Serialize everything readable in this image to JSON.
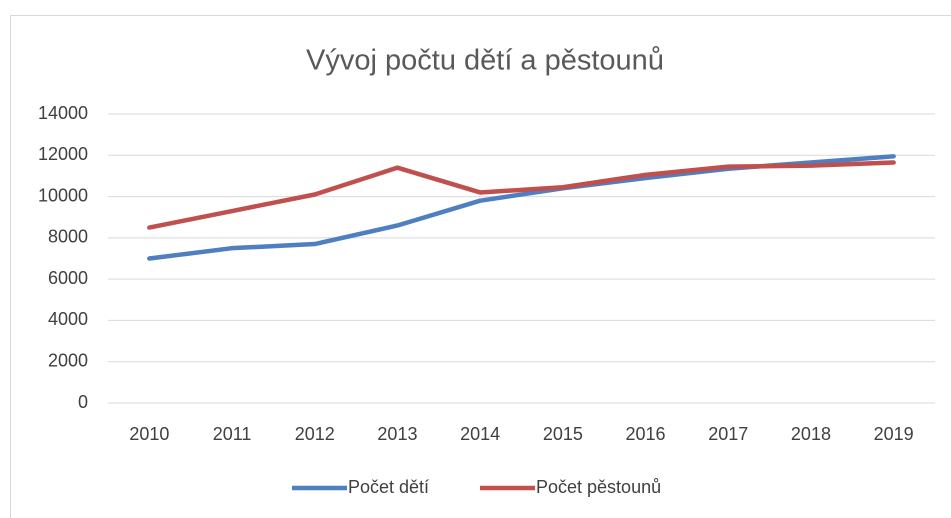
{
  "chart_data": {
    "type": "line",
    "title": "Vývoj počtu dětí a pěstounů",
    "x": [
      "2010",
      "2011",
      "2012",
      "2013",
      "2014",
      "2015",
      "2016",
      "2017",
      "2018",
      "2019"
    ],
    "series": [
      {
        "name": "Počet dětí",
        "color": "#4f7fc0",
        "values": [
          7000,
          7500,
          7700,
          8600,
          9800,
          10400,
          10900,
          11350,
          11650,
          11950
        ]
      },
      {
        "name": "Počet pěstounů",
        "color": "#c0504d",
        "values": [
          8500,
          9300,
          10100,
          11400,
          10200,
          10450,
          11050,
          11450,
          11500,
          11650
        ]
      }
    ],
    "ylim": [
      0,
      14000
    ],
    "yticks": [
      0,
      2000,
      4000,
      6000,
      8000,
      10000,
      12000,
      14000
    ],
    "grid": true,
    "legend": "bottom"
  }
}
